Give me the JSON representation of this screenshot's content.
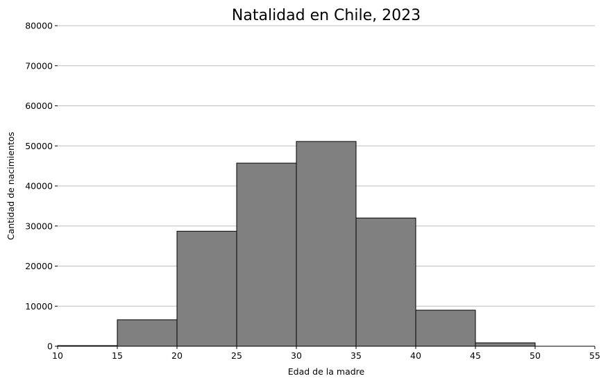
{
  "chart_data": {
    "type": "histogram",
    "title": "Natalidad en Chile, 2023",
    "xlabel": "Edad de la madre",
    "ylabel": "Cantidad de nacimientos",
    "bins": [
      10,
      15,
      20,
      25,
      30,
      35,
      40,
      45,
      50
    ],
    "values": [
      150,
      6600,
      28700,
      45700,
      51100,
      32000,
      9000,
      850
    ],
    "color": "#808080",
    "edgecolor": "#000000",
    "xlim": [
      10,
      55
    ],
    "xticks": [
      10,
      15,
      20,
      25,
      30,
      35,
      40,
      45,
      50,
      55
    ],
    "ylim": [
      0,
      80000
    ],
    "yticks": [
      0,
      10000,
      20000,
      30000,
      40000,
      50000,
      60000,
      70000,
      80000
    ],
    "grid": true
  }
}
